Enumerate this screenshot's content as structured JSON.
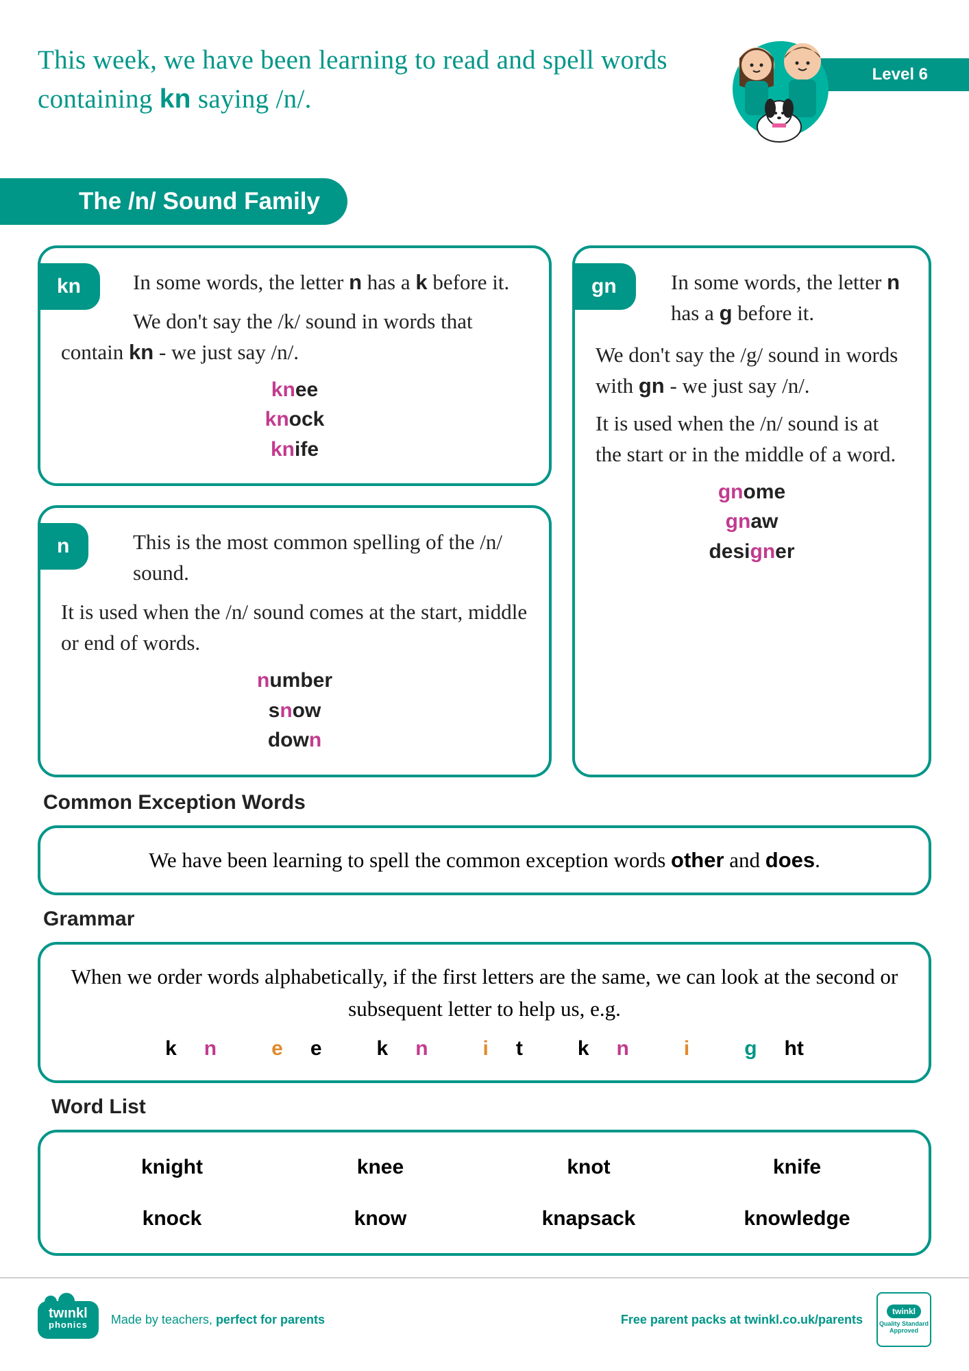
{
  "colors": {
    "accent": "#009688",
    "magenta": "#c23b8f",
    "orange": "#e08a2c"
  },
  "header": {
    "intro_html": "This week, we have been learning to read and spell words containing <b class='kn-bold'>kn</b> saying /n/.",
    "level": "Level 6"
  },
  "title": "The /n/ Sound Family",
  "boxes": {
    "kn": {
      "tag": "kn",
      "p1_html": "In some words, the letter <b>n</b> has a <b>k</b> before it.",
      "p2_html": "We don't say the /k/ sound in words that contain <b>kn</b> - we just say /n/.",
      "examples": [
        {
          "pre": "",
          "hl": "kn",
          "post": "ee"
        },
        {
          "pre": "",
          "hl": "kn",
          "post": "ock"
        },
        {
          "pre": "",
          "hl": "kn",
          "post": "ife"
        }
      ]
    },
    "n": {
      "tag": "n",
      "p1_html": "This is the most common spelling of the /n/ sound.",
      "p2_html": "It is used when the /n/ sound comes at the start, middle or end of words.",
      "examples": [
        {
          "pre": "",
          "hl": "n",
          "post": "umber"
        },
        {
          "pre": "s",
          "hl": "n",
          "post": "ow"
        },
        {
          "pre": "dow",
          "hl": "n",
          "post": ""
        }
      ]
    },
    "gn": {
      "tag": "gn",
      "p1_html": "In some words, the letter <b>n</b> has a <b>g</b> before it.",
      "p2_html": "We don't say the /g/ sound in words with <b>gn</b> - we just say /n/.",
      "p3_html": "It is used when the /n/ sound is at the start or in the middle of a word.",
      "examples": [
        {
          "pre": "",
          "hl": "gn",
          "post": "ome"
        },
        {
          "pre": "",
          "hl": "gn",
          "post": "aw"
        },
        {
          "pre": "desi",
          "hl": "gn",
          "post": "er"
        }
      ]
    }
  },
  "cew": {
    "heading": "Common Exception Words",
    "text_html": "We have been learning to spell the common exception words <b>other</b> and <b>does</b>."
  },
  "grammar": {
    "heading": "Grammar",
    "text": "When we order words alphabetically, if the first letters are the same, we can look at the second or subsequent letter to help us, e.g.",
    "examples": [
      {
        "parts": [
          {
            "t": "k",
            "c": ""
          },
          {
            "t": "n",
            "c": "hl-pink"
          },
          {
            "t": "e",
            "c": "hl-orange"
          },
          {
            "t": "e",
            "c": ""
          }
        ]
      },
      {
        "parts": [
          {
            "t": "k",
            "c": ""
          },
          {
            "t": "n",
            "c": "hl-pink"
          },
          {
            "t": "i",
            "c": "hl-orange"
          },
          {
            "t": "t",
            "c": ""
          }
        ]
      },
      {
        "parts": [
          {
            "t": "k",
            "c": ""
          },
          {
            "t": "n",
            "c": "hl-pink"
          },
          {
            "t": "i",
            "c": "hl-orange"
          },
          {
            "t": "g",
            "c": "hl-teal"
          },
          {
            "t": "ht",
            "c": ""
          }
        ]
      }
    ]
  },
  "wordlist": {
    "heading": "Word List",
    "words": [
      "knight",
      "knee",
      "knot",
      "knife",
      "knock",
      "know",
      "knapsack",
      "knowledge"
    ]
  },
  "footer": {
    "left": "Made by teachers, <b>perfect for parents</b>",
    "right": "Free parent packs at twinkl.co.uk/parents",
    "logo": "twinkl",
    "logo_sub": "phonics",
    "badge": "Quality Standard Approved"
  }
}
